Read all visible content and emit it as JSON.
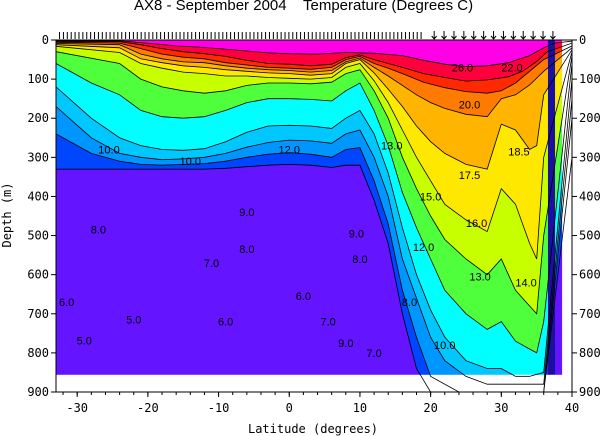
{
  "chart_data": {
    "type": "heatmap",
    "title": "AX8 - September 2004",
    "subtitle": "Temperature (Degrees C)",
    "xlabel": "Latitude (degrees)",
    "ylabel": "Depth (m)",
    "xlim": [
      -33,
      40
    ],
    "ylim": [
      900,
      0
    ],
    "x_ticks": [
      "-30",
      "-20",
      "-10",
      "0",
      "10",
      "20",
      "30",
      "40"
    ],
    "y_ticks_left": [
      "0",
      "100",
      "200",
      "300",
      "400",
      "500",
      "600",
      "700",
      "800",
      "900"
    ],
    "y_ticks_right": [
      "0",
      "100",
      "200",
      "300",
      "400",
      "500",
      "600",
      "700",
      "800",
      "900"
    ],
    "colors": {
      "above_26": "#ff00e6",
      "t24_26": "#ff003c",
      "t22_24": "#ff2800",
      "t20_22": "#ff7a00",
      "t18_20": "#ffb400",
      "t16_18": "#ffe800",
      "t14_16": "#c8ff00",
      "t12_14": "#50ff3c",
      "t11_12": "#00ffa0",
      "t10_11": "#00ffff",
      "t9_10": "#00c8ff",
      "t8_9": "#0096ff",
      "t7_8": "#0046ff",
      "below_7": "#6414ff",
      "no_data": "#ffffff"
    },
    "contour_labels": [
      {
        "text": "26.0",
        "x": 24.5,
        "y": 80
      },
      {
        "text": "22.0",
        "x": 31.5,
        "y": 80
      },
      {
        "text": "20.0",
        "x": 25.5,
        "y": 175
      },
      {
        "text": "18.5",
        "x": 32.5,
        "y": 295
      },
      {
        "text": "17.5",
        "x": 25.5,
        "y": 355
      },
      {
        "text": "16.0",
        "x": 26.5,
        "y": 478
      },
      {
        "text": "15.0",
        "x": 20.0,
        "y": 410
      },
      {
        "text": "14.0",
        "x": 33.5,
        "y": 630
      },
      {
        "text": "13.0",
        "x": 27.0,
        "y": 615
      },
      {
        "text": "12.0",
        "x": 19.0,
        "y": 540
      },
      {
        "text": "10.0",
        "x": 22.0,
        "y": 790
      },
      {
        "text": "8.0",
        "x": 17.0,
        "y": 680
      },
      {
        "text": "7.0",
        "x": 12.0,
        "y": 810
      },
      {
        "text": "13.0",
        "x": 14.5,
        "y": 280
      },
      {
        "text": "12.0",
        "x": 0.0,
        "y": 290
      },
      {
        "text": "10.0",
        "x": -14.0,
        "y": 320
      },
      {
        "text": "9.0",
        "x": -6.0,
        "y": 450
      },
      {
        "text": "8.0",
        "x": -6.0,
        "y": 545
      },
      {
        "text": "7.0",
        "x": -11.0,
        "y": 580
      },
      {
        "text": "6.0",
        "x": 2.0,
        "y": 665
      },
      {
        "text": "6.0",
        "x": -9.0,
        "y": 730
      },
      {
        "text": "5.0",
        "x": -22.0,
        "y": 725
      },
      {
        "text": "5.0",
        "x": -29.0,
        "y": 778
      },
      {
        "text": "6.0",
        "x": -31.5,
        "y": 680
      },
      {
        "text": "8.0",
        "x": -27.0,
        "y": 495
      },
      {
        "text": "9.0",
        "x": 9.5,
        "y": 505
      },
      {
        "text": "8.0",
        "x": 10.0,
        "y": 570
      },
      {
        "text": "9.0",
        "x": 8.0,
        "y": 785
      },
      {
        "text": "7.0",
        "x": 5.5,
        "y": 730
      },
      {
        "text": "10.0",
        "x": -25.5,
        "y": 290
      }
    ]
  }
}
